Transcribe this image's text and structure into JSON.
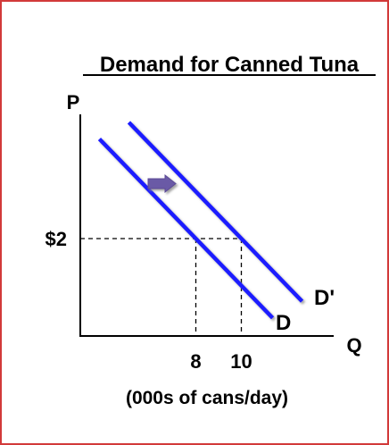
{
  "chart_data": {
    "type": "line",
    "title": "Demand for Canned Tuna",
    "xlabel": "Q",
    "ylabel": "P",
    "units_note": "(000s of cans/day)",
    "grid": false,
    "legend": "none",
    "series": [
      {
        "name": "D",
        "points": [
          {
            "x": 8,
            "y": 2
          }
        ]
      },
      {
        "name": "D'",
        "points": [
          {
            "x": 10,
            "y": 2
          }
        ]
      }
    ],
    "ticks": {
      "x": [
        {
          "value": 8,
          "label": "8"
        },
        {
          "value": 10,
          "label": "10"
        }
      ],
      "y": [
        {
          "value": 2,
          "label": "$2"
        }
      ]
    },
    "annotations": [
      "shift-right-arrow"
    ],
    "colors": {
      "curve": "#1a1aff",
      "curve_shadow": "#8a8a8a",
      "arrow": "#6b5aa6",
      "frame": "#d23a3a"
    }
  }
}
